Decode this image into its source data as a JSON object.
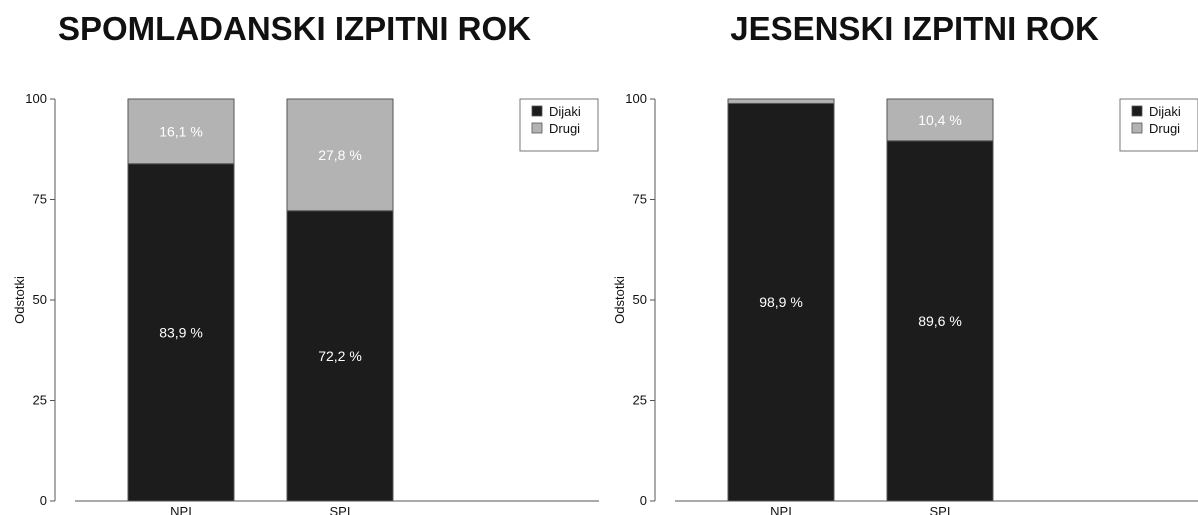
{
  "chart_data": [
    {
      "type": "bar",
      "stacked": true,
      "title": "SPOMLADANSKI IZPITNI ROK",
      "ylabel": "Odstotki",
      "xlabel": "",
      "ylim": [
        0,
        100
      ],
      "yticks": [
        "0",
        "25",
        "50",
        "75",
        "100"
      ],
      "categories": [
        "NPI",
        "SPI"
      ],
      "series": [
        {
          "name": "Dijaki",
          "values": [
            83.9,
            72.2
          ],
          "labels": [
            "83,9 %",
            "72,2 %"
          ],
          "color": "#1c1c1c"
        },
        {
          "name": "Drugi",
          "values": [
            16.1,
            27.8
          ],
          "labels": [
            "16,1 %",
            "27,8 %"
          ],
          "color": "#b3b3b3"
        }
      ],
      "legend": "top-right",
      "grid": false
    },
    {
      "type": "bar",
      "stacked": true,
      "title": "JESENSKI IZPITNI ROK",
      "ylabel": "Odstotki",
      "xlabel": "",
      "ylim": [
        0,
        100
      ],
      "yticks": [
        "0",
        "25",
        "50",
        "75",
        "100"
      ],
      "categories": [
        "NPI",
        "SPI"
      ],
      "series": [
        {
          "name": "Dijaki",
          "values": [
            98.9,
            89.6
          ],
          "labels": [
            "98,9 %",
            "89,6 %"
          ],
          "color": "#1c1c1c"
        },
        {
          "name": "Drugi",
          "values": [
            1.1,
            10.4
          ],
          "labels": [
            "",
            "10,4 %"
          ],
          "color": "#b3b3b3"
        }
      ],
      "legend": "top-right",
      "grid": false
    }
  ]
}
